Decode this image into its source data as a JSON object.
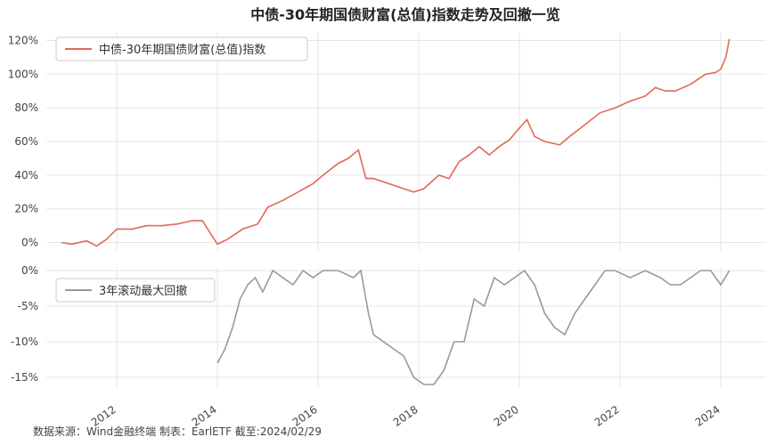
{
  "chart_data": [
    {
      "type": "line",
      "title": "中债-30年期国债财富(总值)指数走势及回撤一览",
      "legend": "中债-30年期国债财富(总值)指数",
      "legend_position": "top-left",
      "color": "#e06a55",
      "ylim": [
        -5,
        125
      ],
      "yticks": [
        "0%",
        "20%",
        "40%",
        "60%",
        "80%",
        "100%",
        "120%"
      ],
      "ytick_values": [
        0,
        20,
        40,
        60,
        80,
        100,
        120
      ],
      "x": [
        2010.9,
        2011.1,
        2011.4,
        2011.6,
        2011.8,
        2012.0,
        2012.3,
        2012.6,
        2012.9,
        2013.2,
        2013.5,
        2013.7,
        2013.85,
        2014.0,
        2014.2,
        2014.5,
        2014.8,
        2015.0,
        2015.3,
        2015.6,
        2015.9,
        2016.1,
        2016.4,
        2016.6,
        2016.8,
        2016.95,
        2017.1,
        2017.4,
        2017.7,
        2017.9,
        2018.1,
        2018.4,
        2018.6,
        2018.8,
        2019.0,
        2019.2,
        2019.4,
        2019.6,
        2019.8,
        2020.0,
        2020.15,
        2020.3,
        2020.5,
        2020.8,
        2021.0,
        2021.3,
        2021.6,
        2021.9,
        2022.2,
        2022.5,
        2022.7,
        2022.9,
        2023.1,
        2023.4,
        2023.7,
        2023.9,
        2024.0,
        2024.1,
        2024.17
      ],
      "y": [
        0,
        -1,
        1,
        -2,
        2,
        8,
        8,
        10,
        10,
        11,
        13,
        13,
        6,
        -1,
        2,
        8,
        11,
        21,
        25,
        30,
        35,
        40,
        47,
        50,
        55,
        38,
        38,
        35,
        32,
        30,
        32,
        40,
        38,
        48,
        52,
        57,
        52,
        57,
        61,
        68,
        73,
        63,
        60,
        58,
        63,
        70,
        77,
        80,
        84,
        87,
        92,
        90,
        90,
        94,
        100,
        101,
        103,
        110,
        121
      ]
    },
    {
      "type": "line",
      "legend": "3年滚动最大回撤",
      "legend_position": "top-left",
      "color": "#999999",
      "ylim": [
        -16.5,
        0.5
      ],
      "yticks": [
        "0%",
        "-5%",
        "-10%",
        "-15%"
      ],
      "ytick_values": [
        0,
        -5,
        -10,
        -15
      ],
      "x": [
        2014.0,
        2014.15,
        2014.3,
        2014.45,
        2014.6,
        2014.75,
        2014.9,
        2015.1,
        2015.3,
        2015.5,
        2015.7,
        2015.9,
        2016.1,
        2016.4,
        2016.7,
        2016.85,
        2017.0,
        2017.1,
        2017.3,
        2017.5,
        2017.7,
        2017.9,
        2018.1,
        2018.3,
        2018.5,
        2018.7,
        2018.9,
        2019.1,
        2019.3,
        2019.5,
        2019.7,
        2019.9,
        2020.1,
        2020.3,
        2020.5,
        2020.7,
        2020.9,
        2021.1,
        2021.3,
        2021.5,
        2021.7,
        2021.9,
        2022.2,
        2022.5,
        2022.8,
        2023.0,
        2023.2,
        2023.4,
        2023.6,
        2023.8,
        2024.0,
        2024.17
      ],
      "y": [
        -13,
        -11,
        -8,
        -4,
        -2,
        -1,
        -3,
        0,
        -1,
        -2,
        0,
        -1,
        0,
        0,
        -1,
        0,
        -6,
        -9,
        -10,
        -11,
        -12,
        -15,
        -16,
        -16,
        -14,
        -10,
        -10,
        -4,
        -5,
        -1,
        -2,
        -1,
        0,
        -2,
        -6,
        -8,
        -9,
        -6,
        -4,
        -2,
        0,
        0,
        -1,
        0,
        -1,
        -2,
        -2,
        -1,
        0,
        0,
        -2,
        0
      ]
    }
  ],
  "xaxis": {
    "xlim": [
      2010.6,
      2024.9
    ],
    "ticks": [
      "2012",
      "2014",
      "2016",
      "2018",
      "2020",
      "2022",
      "2024"
    ],
    "tick_values": [
      2012,
      2014,
      2016,
      2018,
      2020,
      2022,
      2024
    ]
  },
  "footer": {
    "source": "数据来源：Wind金融终端 制表：EarlETF 截至:2024/02/29"
  }
}
